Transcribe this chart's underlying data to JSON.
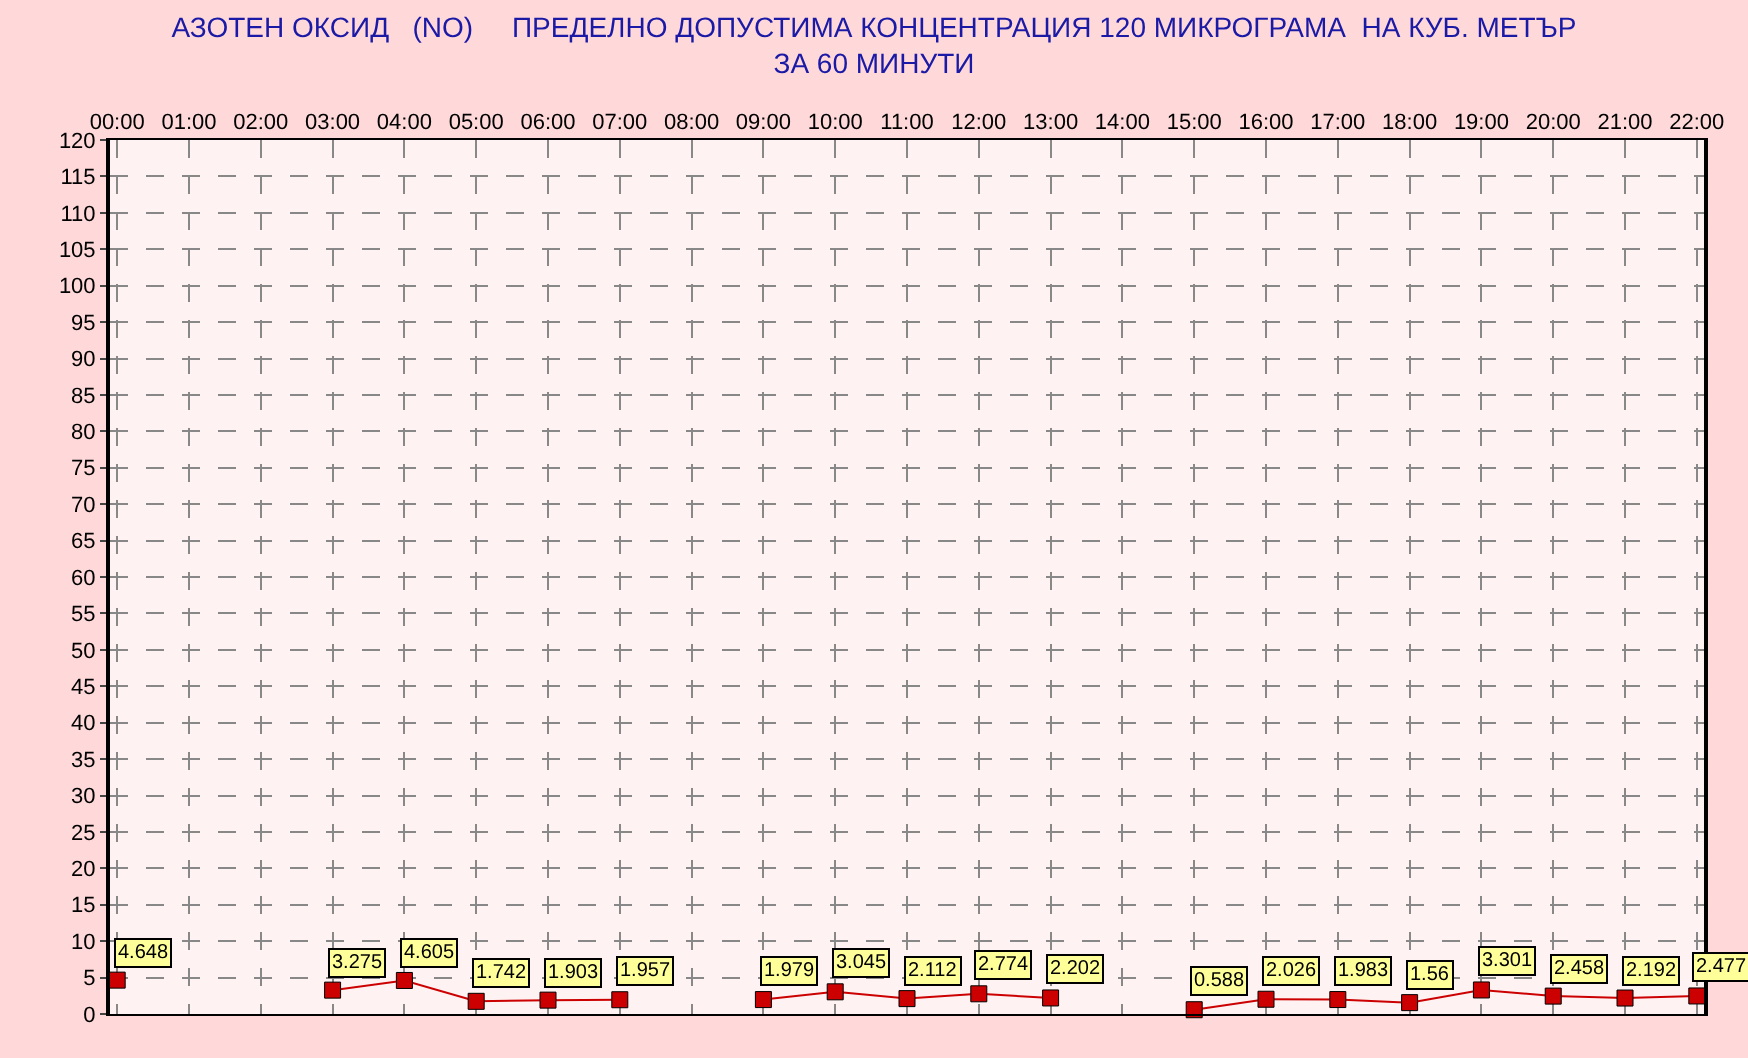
{
  "chart_data": {
    "type": "line",
    "title": "АЗОТЕН ОКСИД   (NO)     ПРЕДЕЛНО ДОПУСТИМА КОНЦЕНТРАЦИЯ 120 МИКРОГРАМА  НА КУБ. МЕТЪР\nЗА 60 МИНУТИ",
    "categories": [
      "00:00",
      "01:00",
      "02:00",
      "03:00",
      "04:00",
      "05:00",
      "06:00",
      "07:00",
      "08:00",
      "09:00",
      "10:00",
      "11:00",
      "12:00",
      "13:00",
      "14:00",
      "15:00",
      "16:00",
      "17:00",
      "18:00",
      "19:00",
      "20:00",
      "21:00",
      "22:00"
    ],
    "values": [
      4.648,
      null,
      null,
      3.275,
      4.605,
      1.742,
      1.903,
      1.957,
      null,
      1.979,
      3.045,
      2.112,
      2.774,
      2.202,
      null,
      0.588,
      2.026,
      1.983,
      1.56,
      3.301,
      2.458,
      2.192,
      2.477
    ],
    "color": "#cc0000",
    "ylim": [
      0,
      120
    ],
    "yticks": [
      0,
      5,
      10,
      15,
      20,
      25,
      30,
      35,
      40,
      45,
      50,
      55,
      60,
      65,
      70,
      75,
      80,
      85,
      90,
      95,
      100,
      105,
      110,
      115,
      120
    ],
    "grid": true,
    "marker": "square",
    "data_labels": true
  }
}
